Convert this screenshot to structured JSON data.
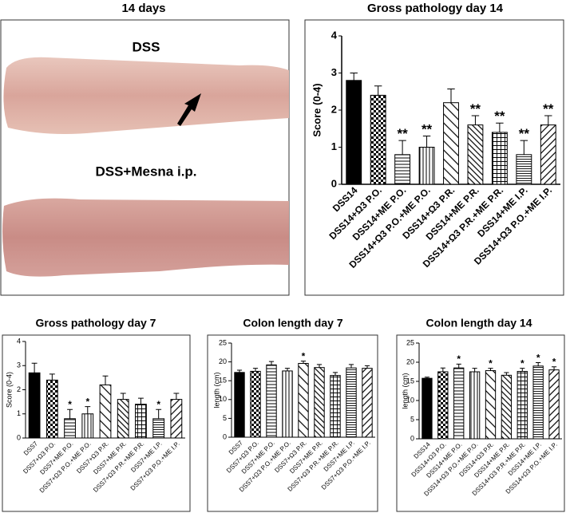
{
  "photo_panel": {
    "title": "14 days",
    "labels": [
      "DSS",
      "DSS+Mesna i.p."
    ]
  },
  "chart_data": [
    {
      "type": "bar",
      "title": "Gross pathology day 14",
      "y_label": "Score (0-4)",
      "categories": [
        "DSS14",
        "DSS14+Ω3 P.O.",
        "DSS14+ME P.O.",
        "DSS14+Ω3 P.O.+ME P.O.",
        "DSS14+Ω3 P.R.",
        "DSS14+ME P.R.",
        "DSS14+Ω3 P.R.+ME P.R.",
        "DSS14+ME I.P.",
        "DSS14+Ω3 P.O.+ME I.P."
      ],
      "values": [
        2.8,
        2.4,
        0.8,
        1.0,
        2.2,
        1.6,
        1.4,
        0.8,
        1.6
      ],
      "errors": [
        0.2,
        0.25,
        0.38,
        0.3,
        0.37,
        0.25,
        0.25,
        0.38,
        0.25
      ],
      "significance": [
        null,
        null,
        "**",
        "**",
        null,
        "**",
        "**",
        "**",
        "**"
      ],
      "ylim": [
        0,
        4
      ],
      "yticks": [
        0,
        1,
        2,
        3,
        4
      ]
    },
    {
      "type": "bar",
      "title": "Gross pathology day 7",
      "y_label": "Score (0-4)",
      "categories": [
        "DSS7",
        "DSS7+Ω3 P.O.",
        "DSS7+ME P.O.",
        "DSS7+Ω3 P.O.+ME P.O.",
        "DSS7+Ω3 P.R.",
        "DSS7+ME P.R.",
        "DSS7+Ω3 P.R.+ME P.R.",
        "DSS7+ME I.P.",
        "DSS7+Ω3 P.O.+ME I.P."
      ],
      "values": [
        2.7,
        2.4,
        0.8,
        1.0,
        2.2,
        1.6,
        1.4,
        0.8,
        1.6
      ],
      "errors": [
        0.4,
        0.25,
        0.38,
        0.3,
        0.37,
        0.25,
        0.25,
        0.38,
        0.25
      ],
      "significance": [
        null,
        null,
        "*",
        "*",
        null,
        null,
        null,
        "*",
        null
      ],
      "ylim": [
        0,
        4
      ],
      "yticks": [
        0,
        1,
        2,
        3,
        4
      ]
    },
    {
      "type": "bar",
      "title": "Colon length day 7",
      "y_label": "length (cm)",
      "categories": [
        "DSS7",
        "DSS7+Ω3 P.O.",
        "DSS7+ME P.O.",
        "DSS7+Ω3 P.O.+ME P.O.",
        "DSS7+Ω3 P.R.",
        "DSS7+ME P.R.",
        "DSS7+Ω3 P.R.+ME P.R.",
        "DSS7+ME I.P.",
        "DSS7+Ω3 P.O.+ME I.P."
      ],
      "values": [
        17.2,
        17.5,
        19.2,
        17.6,
        19.6,
        18.5,
        16.4,
        18.4,
        18.3
      ],
      "errors": [
        0.6,
        0.8,
        0.9,
        0.7,
        0.6,
        0.8,
        0.8,
        0.9,
        0.7
      ],
      "significance": [
        null,
        null,
        null,
        null,
        "*",
        null,
        null,
        null,
        null
      ],
      "ylim": [
        0,
        25
      ],
      "yticks": [
        0,
        5,
        10,
        15,
        20,
        25
      ]
    },
    {
      "type": "bar",
      "title": "Colon length day 14",
      "y_label": "length (cm)",
      "categories": [
        "DSS14",
        "DSS14+Ω3 P.O.",
        "DSS14+ME P.O.",
        "DSS14+Ω3 P.O.+ME P.O.",
        "DSS14+Ω3 P.R.",
        "DSS14+ME P.R.",
        "DSS14+Ω3 P.R.+ME P.R.",
        "DSS14+ME I.P.",
        "DSS14+Ω3 P.O.+ME I.P."
      ],
      "values": [
        15.8,
        17.5,
        18.5,
        17.5,
        17.8,
        16.6,
        17.6,
        19.0,
        18.0
      ],
      "errors": [
        0.3,
        1.0,
        1.0,
        0.9,
        0.6,
        0.7,
        0.8,
        0.9,
        0.8
      ],
      "significance": [
        null,
        null,
        "*",
        null,
        "*",
        null,
        "*",
        "*",
        "*"
      ],
      "ylim": [
        0,
        25
      ],
      "yticks": [
        0,
        5,
        10,
        15,
        20,
        25
      ]
    }
  ]
}
